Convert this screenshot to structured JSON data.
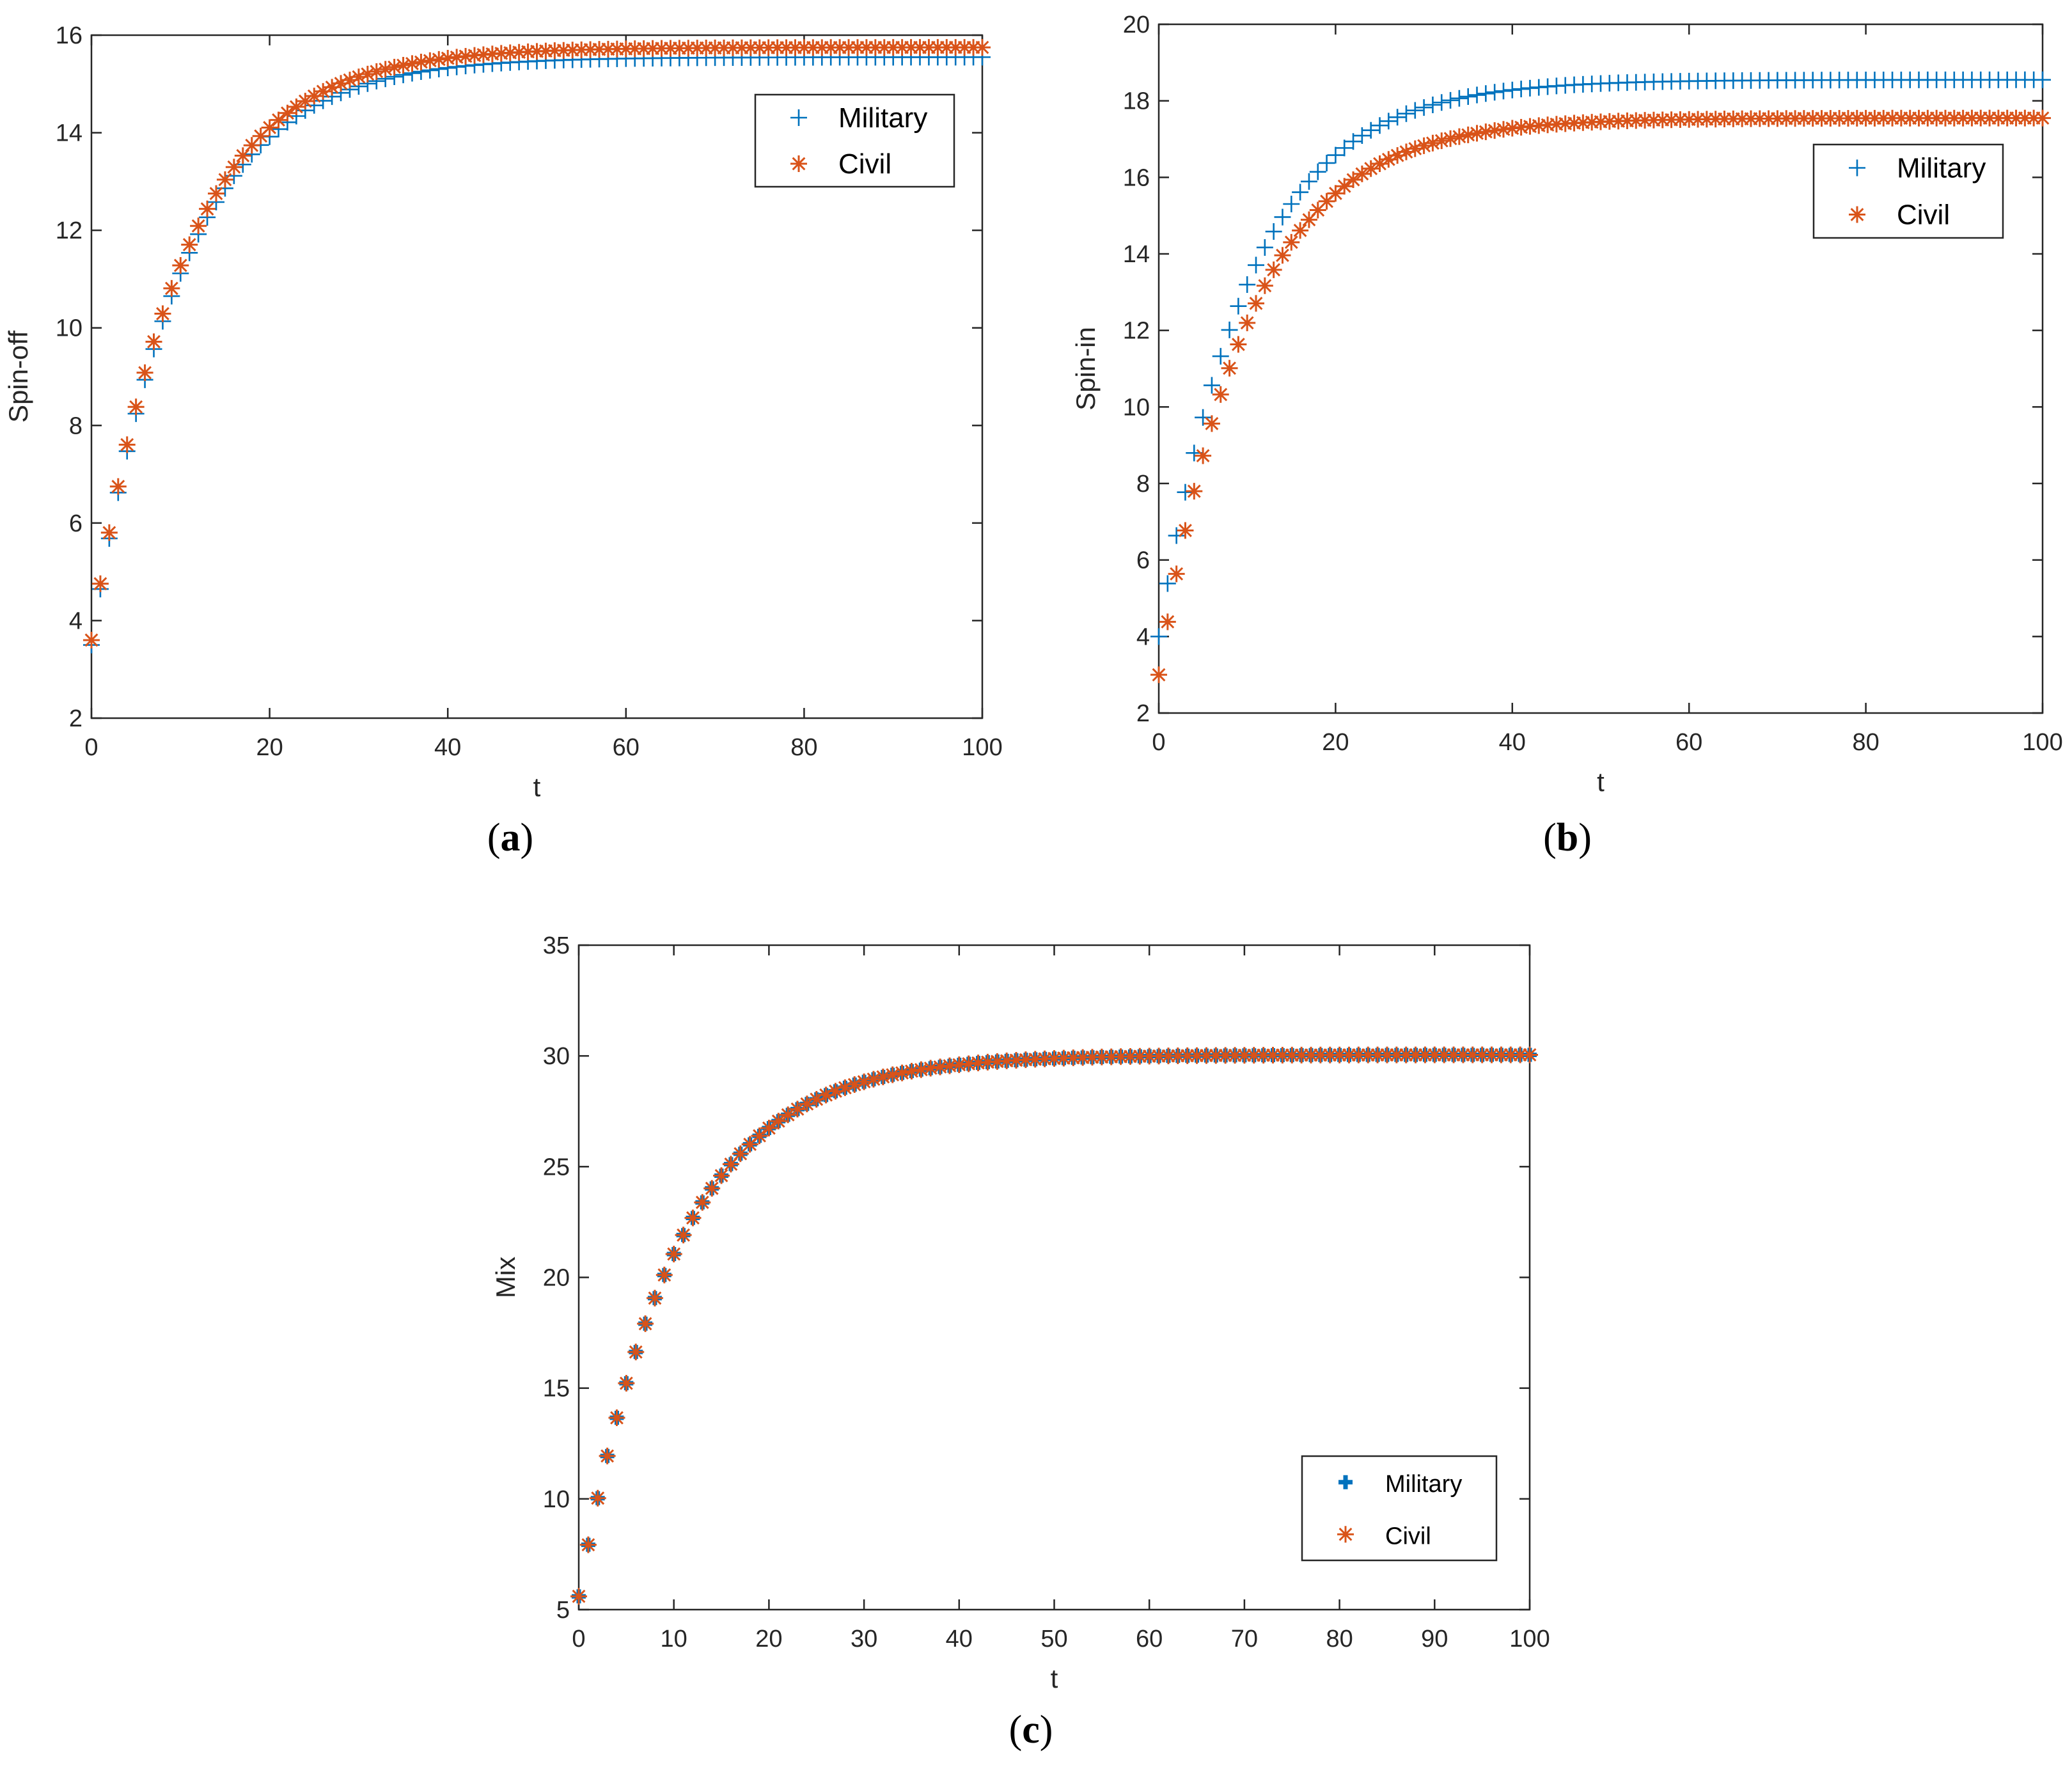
{
  "figure": {
    "colors": {
      "military": "#0072BD",
      "civil": "#D95319",
      "axis": "#262626"
    }
  },
  "chart_data": [
    {
      "id": "a",
      "caption": "a",
      "type": "scatter",
      "xlabel": "t",
      "ylabel": "Spin-off",
      "xlim": [
        0,
        100
      ],
      "ylim": [
        2,
        16
      ],
      "xticks": [
        0,
        20,
        40,
        60,
        80,
        100
      ],
      "yticks": [
        2,
        4,
        6,
        8,
        10,
        12,
        14,
        16
      ],
      "grid": false,
      "legend_position": "top-right",
      "series": [
        {
          "name": "Military",
          "marker": "plus",
          "start": 3.5,
          "end": 15.55,
          "rate": 0.1
        },
        {
          "name": "Civil",
          "marker": "star",
          "start": 3.6,
          "end": 15.75,
          "rate": 0.1
        }
      ]
    },
    {
      "id": "b",
      "caption": "b",
      "type": "scatter",
      "xlabel": "t",
      "ylabel": "Spin-in",
      "xlim": [
        0,
        100
      ],
      "ylim": [
        2,
        20
      ],
      "xticks": [
        0,
        20,
        40,
        60,
        80,
        100
      ],
      "yticks": [
        2,
        4,
        6,
        8,
        10,
        12,
        14,
        16,
        18,
        20
      ],
      "grid": false,
      "legend_position": "top-right",
      "series": [
        {
          "name": "Military",
          "marker": "plus",
          "start": 4.0,
          "end": 18.55,
          "rate": 0.1
        },
        {
          "name": "Civil",
          "marker": "star",
          "start": 3.0,
          "end": 17.55,
          "rate": 0.1
        }
      ]
    },
    {
      "id": "c",
      "caption": "c",
      "type": "scatter",
      "xlabel": "t",
      "ylabel": "Mix",
      "xlim": [
        0,
        100
      ],
      "ylim": [
        5,
        35
      ],
      "xticks": [
        0,
        10,
        20,
        30,
        40,
        50,
        60,
        70,
        80,
        90,
        100
      ],
      "yticks": [
        5,
        10,
        15,
        20,
        25,
        30,
        35
      ],
      "grid": false,
      "legend_position": "bottom-right",
      "series": [
        {
          "name": "Military",
          "marker": "bold-plus",
          "start": 5.6,
          "end": 30.05,
          "rate": 0.1
        },
        {
          "name": "Civil",
          "marker": "star",
          "start": 5.6,
          "end": 30.05,
          "rate": 0.1
        }
      ]
    }
  ]
}
